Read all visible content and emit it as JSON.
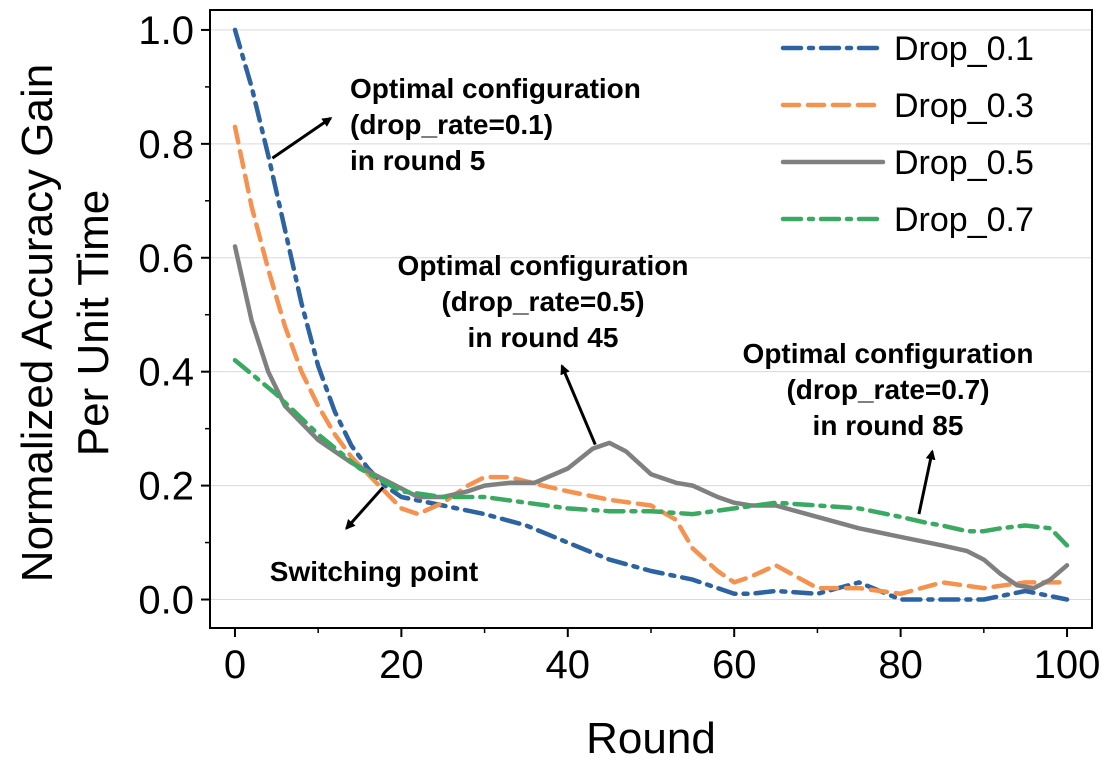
{
  "chart_data": {
    "type": "line",
    "xlabel": "Round",
    "ylabel_lines": [
      "Normalized Accuracy Gain",
      "Per Unit Time"
    ],
    "xlim": [
      -3,
      103
    ],
    "ylim": [
      -0.05,
      1.035
    ],
    "xticks": [
      0,
      20,
      40,
      60,
      80,
      100
    ],
    "xtick_labels": [
      "0",
      "20",
      "40",
      "60",
      "80",
      "100"
    ],
    "yticks": [
      0.0,
      0.2,
      0.4,
      0.6,
      0.8,
      1.0
    ],
    "ytick_labels": [
      "0.0",
      "0.2",
      "0.4",
      "0.6",
      "0.8",
      "1.0"
    ],
    "grid": "horizontal",
    "legend_position": "top-right",
    "series": [
      {
        "name": "Drop_0.1",
        "color": "#2d63a0",
        "style": "dash-dot",
        "x": [
          0,
          2,
          4,
          6,
          8,
          10,
          12,
          14,
          16,
          18,
          20,
          25,
          30,
          35,
          40,
          45,
          50,
          55,
          60,
          62,
          65,
          70,
          75,
          80,
          85,
          90,
          95,
          100
        ],
        "y": [
          1.0,
          0.9,
          0.78,
          0.65,
          0.52,
          0.41,
          0.33,
          0.27,
          0.23,
          0.2,
          0.18,
          0.165,
          0.15,
          0.13,
          0.1,
          0.07,
          0.05,
          0.035,
          0.01,
          0.01,
          0.015,
          0.01,
          0.03,
          0.0,
          0.0,
          0.0,
          0.015,
          0.0
        ]
      },
      {
        "name": "Drop_0.3",
        "color": "#f5924f",
        "style": "dashed",
        "x": [
          0,
          2,
          4,
          6,
          8,
          10,
          12,
          14,
          16,
          18,
          20,
          22,
          25,
          28,
          30,
          33,
          37,
          40,
          45,
          50,
          53,
          55,
          58,
          60,
          62,
          65,
          70,
          75,
          80,
          85,
          90,
          95,
          100
        ],
        "y": [
          0.83,
          0.69,
          0.58,
          0.48,
          0.4,
          0.34,
          0.29,
          0.25,
          0.22,
          0.19,
          0.16,
          0.15,
          0.17,
          0.2,
          0.215,
          0.215,
          0.2,
          0.19,
          0.175,
          0.165,
          0.14,
          0.09,
          0.05,
          0.03,
          0.04,
          0.06,
          0.02,
          0.02,
          0.01,
          0.03,
          0.02,
          0.03,
          0.03
        ]
      },
      {
        "name": "Drop_0.5",
        "color": "#808080",
        "style": "solid",
        "x": [
          0,
          2,
          4,
          6,
          8,
          10,
          12,
          14,
          16,
          18,
          20,
          22,
          25,
          28,
          30,
          33,
          36,
          40,
          43,
          45,
          47,
          50,
          53,
          55,
          58,
          60,
          62,
          65,
          70,
          75,
          80,
          85,
          88,
          90,
          92,
          94,
          96,
          98,
          100
        ],
        "y": [
          0.62,
          0.49,
          0.4,
          0.34,
          0.31,
          0.28,
          0.26,
          0.24,
          0.225,
          0.21,
          0.195,
          0.18,
          0.18,
          0.19,
          0.2,
          0.205,
          0.205,
          0.23,
          0.265,
          0.275,
          0.26,
          0.22,
          0.205,
          0.2,
          0.18,
          0.17,
          0.165,
          0.165,
          0.145,
          0.125,
          0.11,
          0.095,
          0.085,
          0.07,
          0.045,
          0.025,
          0.02,
          0.035,
          0.06
        ]
      },
      {
        "name": "Drop_0.7",
        "color": "#3aaa63",
        "style": "dash-dot",
        "x": [
          0,
          5,
          10,
          15,
          20,
          25,
          30,
          35,
          40,
          45,
          50,
          55,
          60,
          65,
          70,
          75,
          80,
          83,
          85,
          88,
          90,
          92,
          95,
          98,
          100
        ],
        "y": [
          0.42,
          0.36,
          0.29,
          0.23,
          0.19,
          0.18,
          0.18,
          0.17,
          0.16,
          0.155,
          0.155,
          0.15,
          0.16,
          0.17,
          0.165,
          0.16,
          0.145,
          0.135,
          0.13,
          0.12,
          0.12,
          0.125,
          0.13,
          0.125,
          0.095
        ]
      }
    ],
    "annotations": [
      {
        "lines": [
          "Optimal configuration",
          "(drop_rate=0.1)",
          "in round 5"
        ],
        "align": "left",
        "arrow_from": [
          4.5,
          0.775
        ],
        "arrow_to": [
          11.5,
          0.845
        ]
      },
      {
        "lines": [
          "Optimal configuration",
          "(drop_rate=0.5)",
          "in round 45"
        ],
        "align": "center",
        "arrow_from": [
          43.3,
          0.272
        ],
        "arrow_to": [
          39.3,
          0.41
        ]
      },
      {
        "lines": [
          "Optimal configuration",
          "(drop_rate=0.7)",
          "in round 85"
        ],
        "align": "center",
        "arrow_from": [
          82.2,
          0.15
        ],
        "arrow_to": [
          83.8,
          0.26
        ]
      },
      {
        "lines": [
          "Switching point"
        ],
        "align": "center",
        "arrow_from": [
          17.8,
          0.197
        ],
        "arrow_to": [
          13.4,
          0.125
        ]
      }
    ]
  }
}
